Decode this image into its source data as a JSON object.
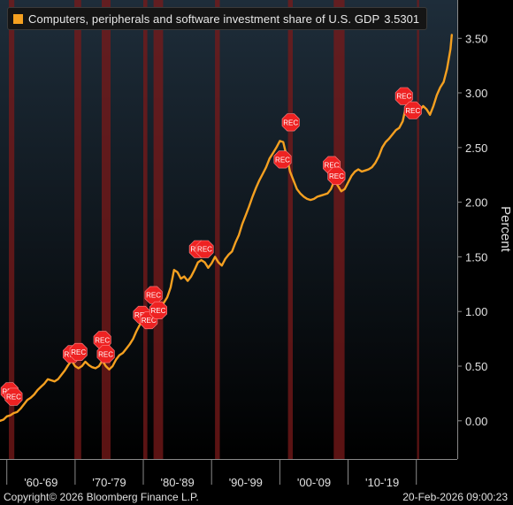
{
  "legend": {
    "label": "Computers, peripherals and software investment share of U.S. GDP",
    "value": "3.5301"
  },
  "footer": {
    "copyright": "Copyright© 2026 Bloomberg Finance L.P.",
    "timestamp": "20-Feb-2026 09:00:23"
  },
  "colors": {
    "background_top": "#1e2d3a",
    "background_bottom": "#000000",
    "line": "#f5a020",
    "recession_band": "#7a1a1a",
    "rec_marker": "#ee2222"
  },
  "chart_data": {
    "type": "line",
    "title": "Computers, peripherals and software investment share of U.S. GDP",
    "ylabel": "Percent",
    "xlabel": "",
    "ylim": [
      -0.35,
      3.85
    ],
    "xlim": [
      1959.0,
      2026.0
    ],
    "y_ticks": [
      "0.00",
      "0.50",
      "1.00",
      "1.50",
      "2.00",
      "2.50",
      "3.00",
      "3.50"
    ],
    "x_tick_labels": [
      {
        "label": "'60-'69",
        "x": 1965
      },
      {
        "label": "'70-'79",
        "x": 1975
      },
      {
        "label": "'80-'89",
        "x": 1985
      },
      {
        "label": "'90-'99",
        "x": 1995
      },
      {
        "label": "'00-'09",
        "x": 2005
      },
      {
        "label": "'10-'19",
        "x": 2015
      }
    ],
    "x_tick_marks": [
      1960,
      1970,
      1980,
      1990,
      2000,
      2010,
      2020
    ],
    "grid": false,
    "legend_position": "top-left",
    "last_value": 3.5301,
    "recessions": [
      {
        "start": 1960.3,
        "end": 1961.1,
        "label": "REC"
      },
      {
        "start": 1969.9,
        "end": 1970.9,
        "label": "REC"
      },
      {
        "start": 1973.9,
        "end": 1975.2,
        "label": "REC"
      },
      {
        "start": 1980.0,
        "end": 1980.6,
        "label": "REC"
      },
      {
        "start": 1981.5,
        "end": 1982.9,
        "label": "REC"
      },
      {
        "start": 1990.5,
        "end": 1991.2,
        "label": "REC"
      },
      {
        "start": 2001.2,
        "end": 2001.9,
        "label": "REC"
      },
      {
        "start": 2007.9,
        "end": 2009.5,
        "label": "REC"
      },
      {
        "start": 2020.1,
        "end": 2020.4,
        "label": "REC"
      }
    ],
    "rec_markers": [
      {
        "x": 1960.4,
        "y": 0.27
      },
      {
        "x": 1961.0,
        "y": 0.22
      },
      {
        "x": 1969.5,
        "y": 0.61
      },
      {
        "x": 1970.5,
        "y": 0.63
      },
      {
        "x": 1974.0,
        "y": 0.74
      },
      {
        "x": 1974.5,
        "y": 0.61
      },
      {
        "x": 1979.8,
        "y": 0.97
      },
      {
        "x": 1980.8,
        "y": 0.92
      },
      {
        "x": 1981.5,
        "y": 1.15
      },
      {
        "x": 1982.2,
        "y": 1.01
      },
      {
        "x": 1988.0,
        "y": 1.57
      },
      {
        "x": 1989.0,
        "y": 1.57
      },
      {
        "x": 2000.4,
        "y": 2.39
      },
      {
        "x": 2001.6,
        "y": 2.73
      },
      {
        "x": 2007.6,
        "y": 2.34
      },
      {
        "x": 2008.3,
        "y": 2.24
      },
      {
        "x": 2018.2,
        "y": 2.97
      },
      {
        "x": 2019.5,
        "y": 2.84
      }
    ],
    "series": [
      {
        "values": [
          [
            1959.0,
            0.0
          ],
          [
            1959.5,
            0.01
          ],
          [
            1960.0,
            0.04
          ],
          [
            1960.5,
            0.05
          ],
          [
            1961.0,
            0.07
          ],
          [
            1961.5,
            0.08
          ],
          [
            1962.0,
            0.11
          ],
          [
            1962.5,
            0.15
          ],
          [
            1963.0,
            0.19
          ],
          [
            1963.5,
            0.21
          ],
          [
            1964.0,
            0.24
          ],
          [
            1964.5,
            0.28
          ],
          [
            1965.0,
            0.31
          ],
          [
            1965.5,
            0.34
          ],
          [
            1966.0,
            0.38
          ],
          [
            1966.5,
            0.37
          ],
          [
            1967.0,
            0.36
          ],
          [
            1967.5,
            0.38
          ],
          [
            1968.0,
            0.42
          ],
          [
            1968.5,
            0.46
          ],
          [
            1969.0,
            0.51
          ],
          [
            1969.5,
            0.55
          ],
          [
            1970.0,
            0.5
          ],
          [
            1970.5,
            0.48
          ],
          [
            1971.0,
            0.5
          ],
          [
            1971.5,
            0.54
          ],
          [
            1972.0,
            0.51
          ],
          [
            1972.5,
            0.49
          ],
          [
            1973.0,
            0.48
          ],
          [
            1973.5,
            0.5
          ],
          [
            1974.0,
            0.55
          ],
          [
            1974.5,
            0.5
          ],
          [
            1975.0,
            0.47
          ],
          [
            1975.5,
            0.5
          ],
          [
            1976.0,
            0.56
          ],
          [
            1976.5,
            0.6
          ],
          [
            1977.0,
            0.62
          ],
          [
            1977.5,
            0.66
          ],
          [
            1978.0,
            0.7
          ],
          [
            1978.5,
            0.75
          ],
          [
            1979.0,
            0.82
          ],
          [
            1979.5,
            0.88
          ],
          [
            1980.0,
            0.92
          ],
          [
            1980.5,
            0.9
          ],
          [
            1981.0,
            0.98
          ],
          [
            1981.5,
            1.05
          ],
          [
            1982.0,
            1.0
          ],
          [
            1982.5,
            1.02
          ],
          [
            1983.0,
            1.08
          ],
          [
            1983.5,
            1.13
          ],
          [
            1984.0,
            1.22
          ],
          [
            1984.5,
            1.38
          ],
          [
            1985.0,
            1.36
          ],
          [
            1985.5,
            1.3
          ],
          [
            1986.0,
            1.32
          ],
          [
            1986.5,
            1.28
          ],
          [
            1987.0,
            1.32
          ],
          [
            1987.5,
            1.38
          ],
          [
            1988.0,
            1.45
          ],
          [
            1988.5,
            1.47
          ],
          [
            1989.0,
            1.45
          ],
          [
            1989.5,
            1.4
          ],
          [
            1990.0,
            1.44
          ],
          [
            1990.5,
            1.5
          ],
          [
            1991.0,
            1.45
          ],
          [
            1991.5,
            1.42
          ],
          [
            1992.0,
            1.48
          ],
          [
            1992.5,
            1.52
          ],
          [
            1993.0,
            1.55
          ],
          [
            1993.5,
            1.63
          ],
          [
            1994.0,
            1.7
          ],
          [
            1994.5,
            1.8
          ],
          [
            1995.0,
            1.88
          ],
          [
            1995.5,
            1.96
          ],
          [
            1996.0,
            2.05
          ],
          [
            1996.5,
            2.13
          ],
          [
            1997.0,
            2.2
          ],
          [
            1997.5,
            2.26
          ],
          [
            1998.0,
            2.32
          ],
          [
            1998.5,
            2.4
          ],
          [
            1999.0,
            2.45
          ],
          [
            1999.5,
            2.5
          ],
          [
            2000.0,
            2.56
          ],
          [
            2000.5,
            2.55
          ],
          [
            2001.0,
            2.42
          ],
          [
            2001.5,
            2.28
          ],
          [
            2002.0,
            2.2
          ],
          [
            2002.5,
            2.12
          ],
          [
            2003.0,
            2.08
          ],
          [
            2003.5,
            2.05
          ],
          [
            2004.0,
            2.03
          ],
          [
            2004.5,
            2.02
          ],
          [
            2005.0,
            2.03
          ],
          [
            2005.5,
            2.05
          ],
          [
            2006.0,
            2.06
          ],
          [
            2006.5,
            2.07
          ],
          [
            2007.0,
            2.08
          ],
          [
            2007.5,
            2.12
          ],
          [
            2008.0,
            2.2
          ],
          [
            2008.5,
            2.15
          ],
          [
            2009.0,
            2.1
          ],
          [
            2009.5,
            2.12
          ],
          [
            2010.0,
            2.18
          ],
          [
            2010.5,
            2.24
          ],
          [
            2011.0,
            2.28
          ],
          [
            2011.5,
            2.3
          ],
          [
            2012.0,
            2.28
          ],
          [
            2012.5,
            2.29
          ],
          [
            2013.0,
            2.3
          ],
          [
            2013.5,
            2.32
          ],
          [
            2014.0,
            2.36
          ],
          [
            2014.5,
            2.42
          ],
          [
            2015.0,
            2.5
          ],
          [
            2015.5,
            2.55
          ],
          [
            2016.0,
            2.58
          ],
          [
            2016.5,
            2.62
          ],
          [
            2017.0,
            2.66
          ],
          [
            2017.5,
            2.68
          ],
          [
            2018.0,
            2.74
          ],
          [
            2018.5,
            2.88
          ],
          [
            2019.0,
            2.92
          ],
          [
            2019.5,
            2.9
          ],
          [
            2020.0,
            2.86
          ],
          [
            2020.5,
            2.84
          ],
          [
            2021.0,
            2.88
          ],
          [
            2021.5,
            2.85
          ],
          [
            2022.0,
            2.8
          ],
          [
            2022.5,
            2.88
          ],
          [
            2023.0,
            2.98
          ],
          [
            2023.5,
            3.05
          ],
          [
            2024.0,
            3.1
          ],
          [
            2024.5,
            3.22
          ],
          [
            2025.0,
            3.4
          ],
          [
            2025.2,
            3.5301
          ]
        ]
      }
    ]
  }
}
